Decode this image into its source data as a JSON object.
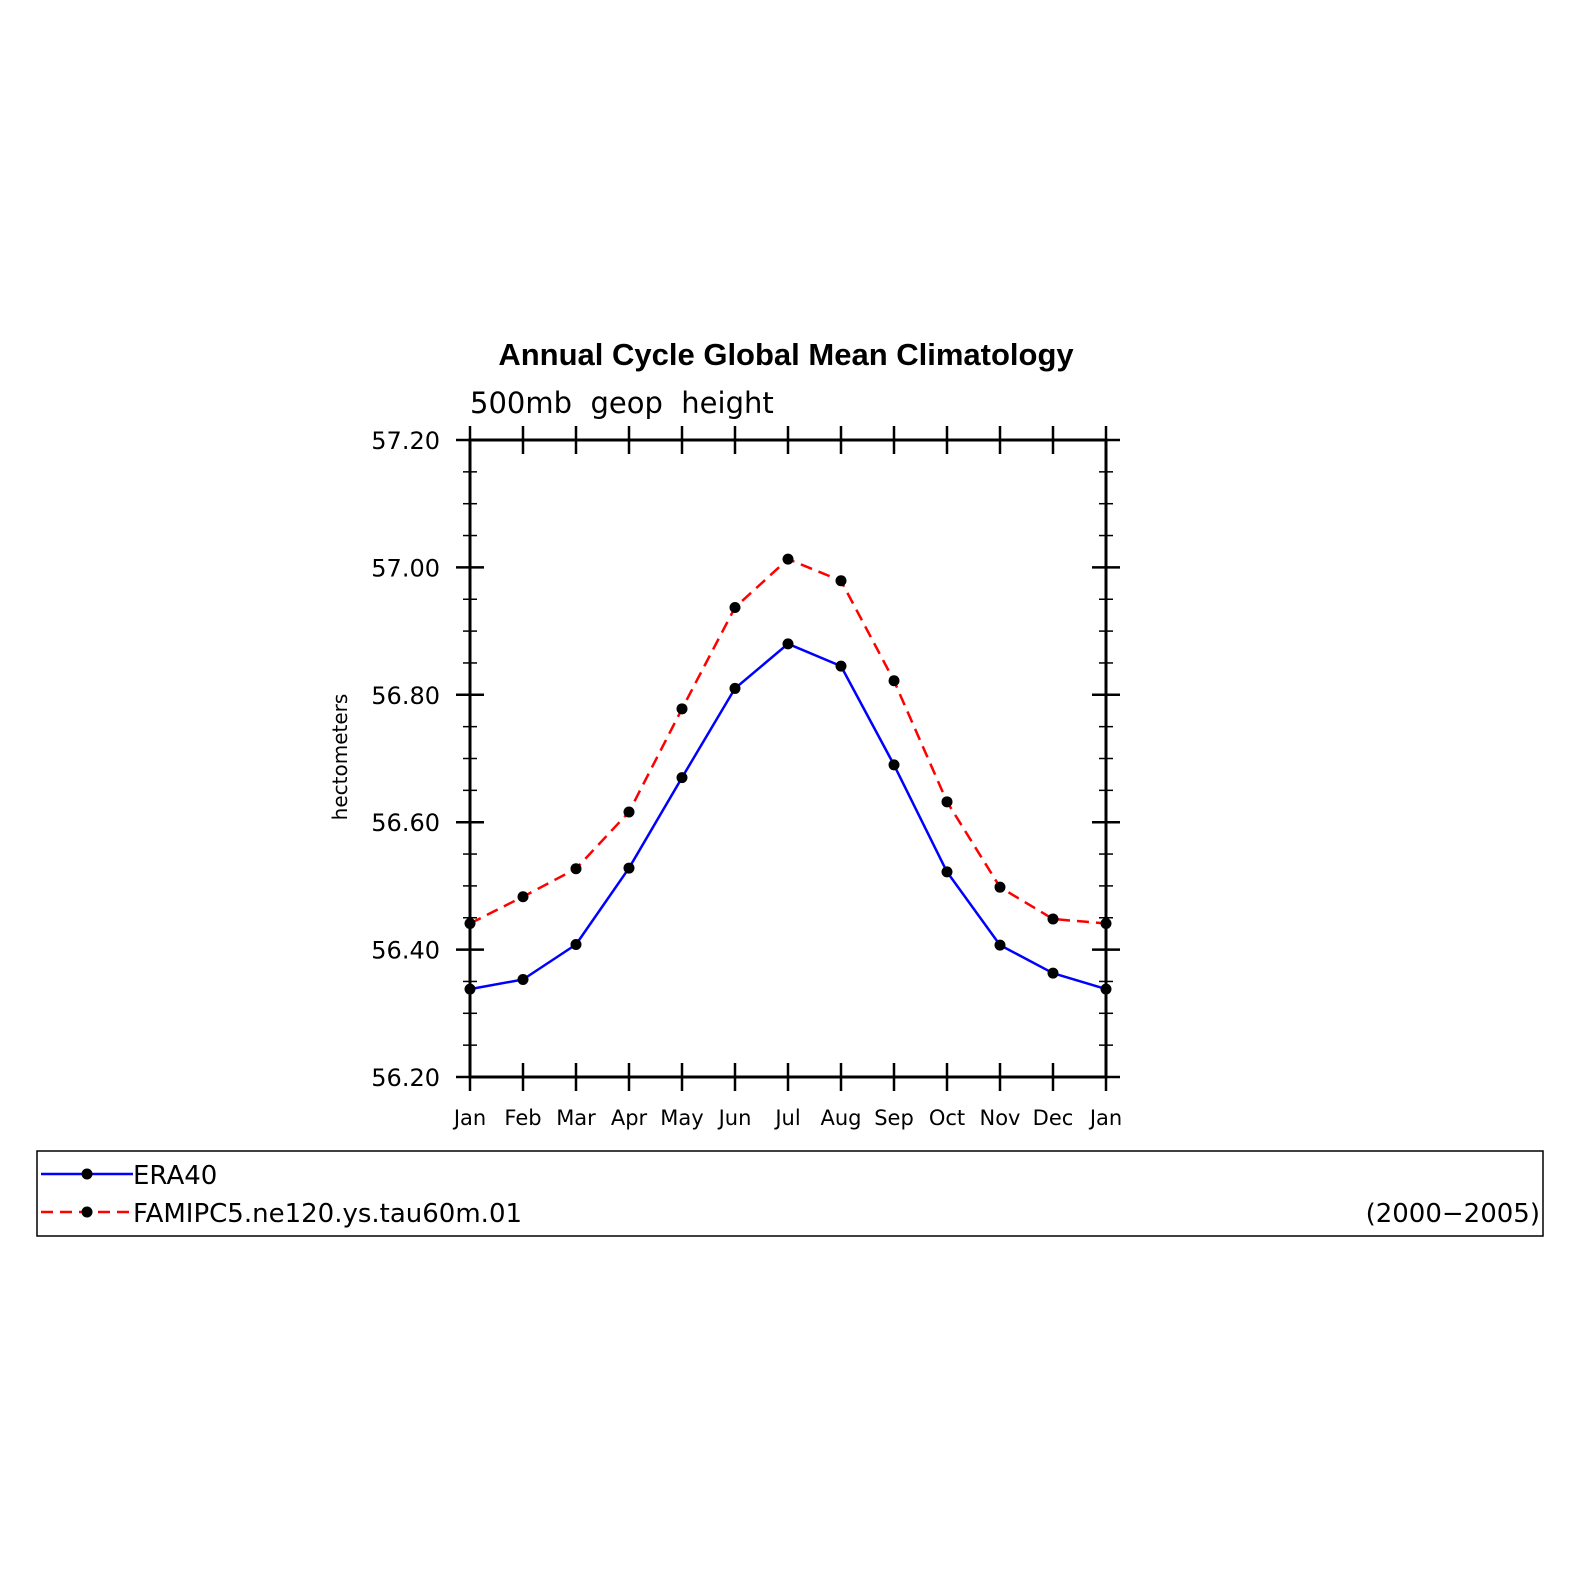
{
  "chart_data": {
    "type": "line",
    "title": "Annual Cycle Global Mean Climatology",
    "subtitle": "500mb  geop  height",
    "ylabel": "hectometers",
    "xlabel": "",
    "categories": [
      "Jan",
      "Feb",
      "Mar",
      "Apr",
      "May",
      "Jun",
      "Jul",
      "Aug",
      "Sep",
      "Oct",
      "Nov",
      "Dec",
      "Jan"
    ],
    "ylim": [
      56.2,
      57.2
    ],
    "yticks": [
      "56.20",
      "56.40",
      "56.60",
      "56.80",
      "57.00",
      "57.20"
    ],
    "yminor_step": 0.05,
    "grid": false,
    "legend_placement": "bottom",
    "period_label": "(2000−2005)",
    "series": [
      {
        "name": "ERA40",
        "color": "#0000ff",
        "dash": "solid",
        "marker": "filled-circle",
        "values": [
          56.338,
          56.353,
          56.408,
          56.528,
          56.67,
          56.81,
          56.88,
          56.845,
          56.69,
          56.522,
          56.407,
          56.363,
          56.338
        ]
      },
      {
        "name": "FAMIPC5.ne120.ys.tau60m.01",
        "color": "#ff0000",
        "dash": "dashed",
        "marker": "filled-circle",
        "values": [
          56.441,
          56.483,
          56.527,
          56.616,
          56.778,
          56.937,
          57.013,
          56.979,
          56.822,
          56.632,
          56.498,
          56.448,
          56.441
        ]
      }
    ]
  }
}
